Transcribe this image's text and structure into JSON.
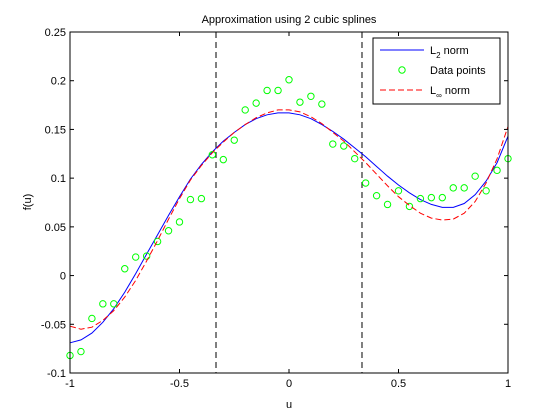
{
  "chart_data": {
    "type": "line",
    "title": "Approximation using 2 cubic splines",
    "xlabel": "u",
    "ylabel": "f(u)",
    "xlim": [
      -1,
      1
    ],
    "ylim": [
      -0.1,
      0.25
    ],
    "xticks": [
      -1,
      -0.5,
      0,
      0.5,
      1
    ],
    "xtick_labels": [
      "-1",
      "-0.5",
      "0",
      "0.5",
      "1"
    ],
    "yticks": [
      -0.1,
      -0.05,
      0,
      0.05,
      0.1,
      0.15,
      0.2,
      0.25
    ],
    "ytick_labels": [
      "-0.1",
      "-0.05",
      "0",
      "0.05",
      "0.1",
      "0.15",
      "0.2",
      "0.25"
    ],
    "grid": false,
    "legend_position": "top-right",
    "knots": [
      -0.3333,
      0.3333
    ],
    "knot_color": "#000000",
    "series": [
      {
        "name": "L",
        "name_subscript": "2",
        "name_suffix": " norm",
        "style": "solid",
        "color": "#0000ff",
        "x": [
          -1,
          -0.95,
          -0.9,
          -0.85,
          -0.8,
          -0.75,
          -0.7,
          -0.65,
          -0.6,
          -0.55,
          -0.5,
          -0.45,
          -0.4,
          -0.35,
          -0.3,
          -0.25,
          -0.2,
          -0.15,
          -0.1,
          -0.05,
          0,
          0.05,
          0.1,
          0.15,
          0.2,
          0.25,
          0.3,
          0.35,
          0.4,
          0.45,
          0.5,
          0.55,
          0.6,
          0.65,
          0.7,
          0.75,
          0.8,
          0.85,
          0.9,
          0.95,
          1
        ],
        "y": [
          -0.069,
          -0.066,
          -0.059,
          -0.048,
          -0.034,
          -0.017,
          0.002,
          0.022,
          0.042,
          0.062,
          0.081,
          0.099,
          0.114,
          0.127,
          0.138,
          0.147,
          0.155,
          0.161,
          0.165,
          0.167,
          0.167,
          0.165,
          0.161,
          0.155,
          0.148,
          0.14,
          0.131,
          0.122,
          0.112,
          0.102,
          0.093,
          0.085,
          0.078,
          0.073,
          0.07,
          0.07,
          0.074,
          0.083,
          0.097,
          0.116,
          0.143
        ]
      },
      {
        "name": "Data points",
        "style": "markers",
        "marker": "circle",
        "color": "#00ff00",
        "x": [
          -1,
          -0.95,
          -0.9,
          -0.85,
          -0.8,
          -0.75,
          -0.7,
          -0.65,
          -0.6,
          -0.55,
          -0.5,
          -0.45,
          -0.4,
          -0.35,
          -0.3,
          -0.25,
          -0.2,
          -0.15,
          -0.1,
          -0.05,
          0,
          0.05,
          0.1,
          0.15,
          0.2,
          0.25,
          0.3,
          0.35,
          0.4,
          0.45,
          0.5,
          0.55,
          0.6,
          0.65,
          0.7,
          0.75,
          0.8,
          0.85,
          0.9,
          0.95,
          1
        ],
        "y": [
          -0.082,
          -0.078,
          -0.044,
          -0.029,
          -0.029,
          0.007,
          0.019,
          0.02,
          0.035,
          0.046,
          0.055,
          0.078,
          0.079,
          0.124,
          0.119,
          0.139,
          0.17,
          0.177,
          0.19,
          0.19,
          0.201,
          0.178,
          0.184,
          0.176,
          0.135,
          0.133,
          0.12,
          0.095,
          0.082,
          0.073,
          0.087,
          0.071,
          0.079,
          0.08,
          0.08,
          0.09,
          0.09,
          0.102,
          0.087,
          0.108,
          0.12
        ]
      },
      {
        "name": "L",
        "name_subscript": "∞",
        "name_suffix": " norm",
        "style": "dashed",
        "color": "#ff0000",
        "x": [
          -1,
          -0.95,
          -0.9,
          -0.85,
          -0.8,
          -0.75,
          -0.7,
          -0.65,
          -0.6,
          -0.55,
          -0.5,
          -0.45,
          -0.4,
          -0.35,
          -0.3,
          -0.25,
          -0.2,
          -0.15,
          -0.1,
          -0.05,
          0,
          0.05,
          0.1,
          0.15,
          0.2,
          0.25,
          0.3,
          0.35,
          0.4,
          0.45,
          0.5,
          0.55,
          0.6,
          0.65,
          0.7,
          0.75,
          0.8,
          0.85,
          0.9,
          0.95,
          1
        ],
        "y": [
          -0.052,
          -0.055,
          -0.053,
          -0.046,
          -0.036,
          -0.022,
          -0.005,
          0.015,
          0.036,
          0.058,
          0.079,
          0.098,
          0.113,
          0.126,
          0.137,
          0.147,
          0.155,
          0.162,
          0.167,
          0.17,
          0.17,
          0.168,
          0.163,
          0.156,
          0.147,
          0.138,
          0.127,
          0.116,
          0.104,
          0.092,
          0.081,
          0.072,
          0.064,
          0.059,
          0.057,
          0.058,
          0.064,
          0.076,
          0.095,
          0.12,
          0.153
        ]
      }
    ]
  }
}
